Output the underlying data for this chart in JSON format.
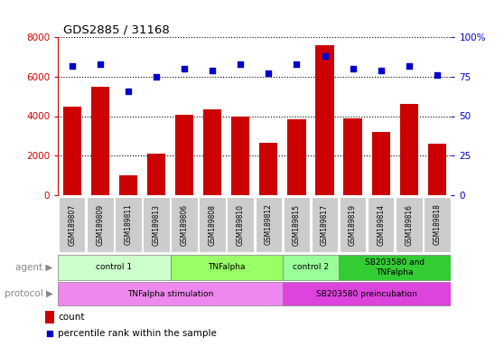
{
  "title": "GDS2885 / 31168",
  "samples": [
    "GSM189807",
    "GSM189809",
    "GSM189811",
    "GSM189813",
    "GSM189806",
    "GSM189808",
    "GSM189810",
    "GSM189812",
    "GSM189815",
    "GSM189817",
    "GSM189819",
    "GSM189814",
    "GSM189816",
    "GSM189818"
  ],
  "counts": [
    4500,
    5500,
    1000,
    2100,
    4050,
    4350,
    4000,
    2650,
    3850,
    7600,
    3900,
    3200,
    4600,
    2600
  ],
  "percentiles": [
    82,
    83,
    66,
    75,
    80,
    79,
    83,
    77,
    83,
    88,
    80,
    79,
    82,
    76
  ],
  "ylim_left": [
    0,
    8000
  ],
  "ylim_right": [
    0,
    100
  ],
  "yticks_left": [
    0,
    2000,
    4000,
    6000,
    8000
  ],
  "yticks_right": [
    0,
    25,
    50,
    75,
    100
  ],
  "bar_color": "#cc0000",
  "dot_color": "#0000cc",
  "agent_groups": [
    {
      "label": "control 1",
      "start": 0,
      "end": 4,
      "color": "#ccffcc"
    },
    {
      "label": "TNFalpha",
      "start": 4,
      "end": 8,
      "color": "#99ff66"
    },
    {
      "label": "control 2",
      "start": 8,
      "end": 10,
      "color": "#99ff99"
    },
    {
      "label": "SB203580 and\nTNFalpha",
      "start": 10,
      "end": 14,
      "color": "#33cc33"
    }
  ],
  "protocol_groups": [
    {
      "label": "TNFalpha stimulation",
      "start": 0,
      "end": 8,
      "color": "#ee88ee"
    },
    {
      "label": "SB203580 preincubation",
      "start": 8,
      "end": 14,
      "color": "#dd44dd"
    }
  ],
  "sample_bg_color": "#cccccc",
  "legend_count_color": "#cc0000",
  "legend_dot_color": "#0000cc",
  "left_ylabel_color": "#cc0000",
  "right_ylabel_color": "#0000cc",
  "agent_label": "agent",
  "protocol_label": "protocol"
}
